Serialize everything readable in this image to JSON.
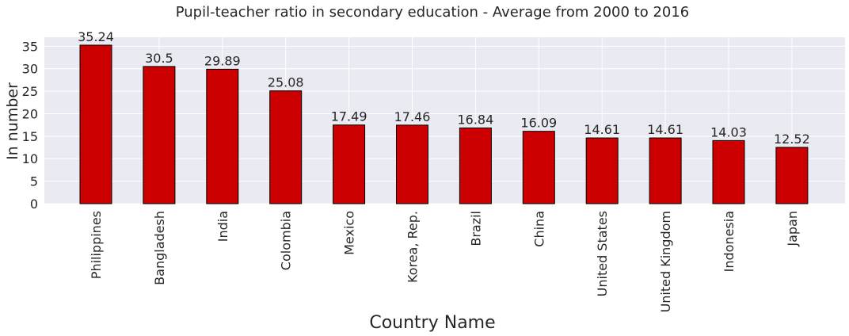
{
  "chart_data": {
    "type": "bar",
    "title": "Pupil-teacher ratio in secondary education - Average from 2000 to 2016",
    "xlabel": "Country Name",
    "ylabel": "In number",
    "categories": [
      "Philippines",
      "Bangladesh",
      "India",
      "Colombia",
      "Mexico",
      "Korea, Rep.",
      "Brazil",
      "China",
      "United States",
      "United Kingdom",
      "Indonesia",
      "Japan"
    ],
    "values": [
      35.24,
      30.5,
      29.89,
      25.08,
      17.49,
      17.46,
      16.84,
      16.09,
      14.61,
      14.61,
      14.03,
      12.52
    ],
    "data_labels": [
      "35.24",
      "30.5",
      "29.89",
      "25.08",
      "17.49",
      "17.46",
      "16.84",
      "16.09",
      "14.61",
      "14.61",
      "14.03",
      "12.52"
    ],
    "ylim": [
      0,
      37
    ],
    "yticks": [
      0,
      5,
      10,
      15,
      20,
      25,
      30,
      35
    ],
    "grid": true,
    "legend": "none",
    "colors": {
      "bar": "#cc0000",
      "bar_edge": "#000000",
      "plot_background": "#eaeaf2",
      "grid": "#ffffff",
      "text": "#262626"
    }
  }
}
